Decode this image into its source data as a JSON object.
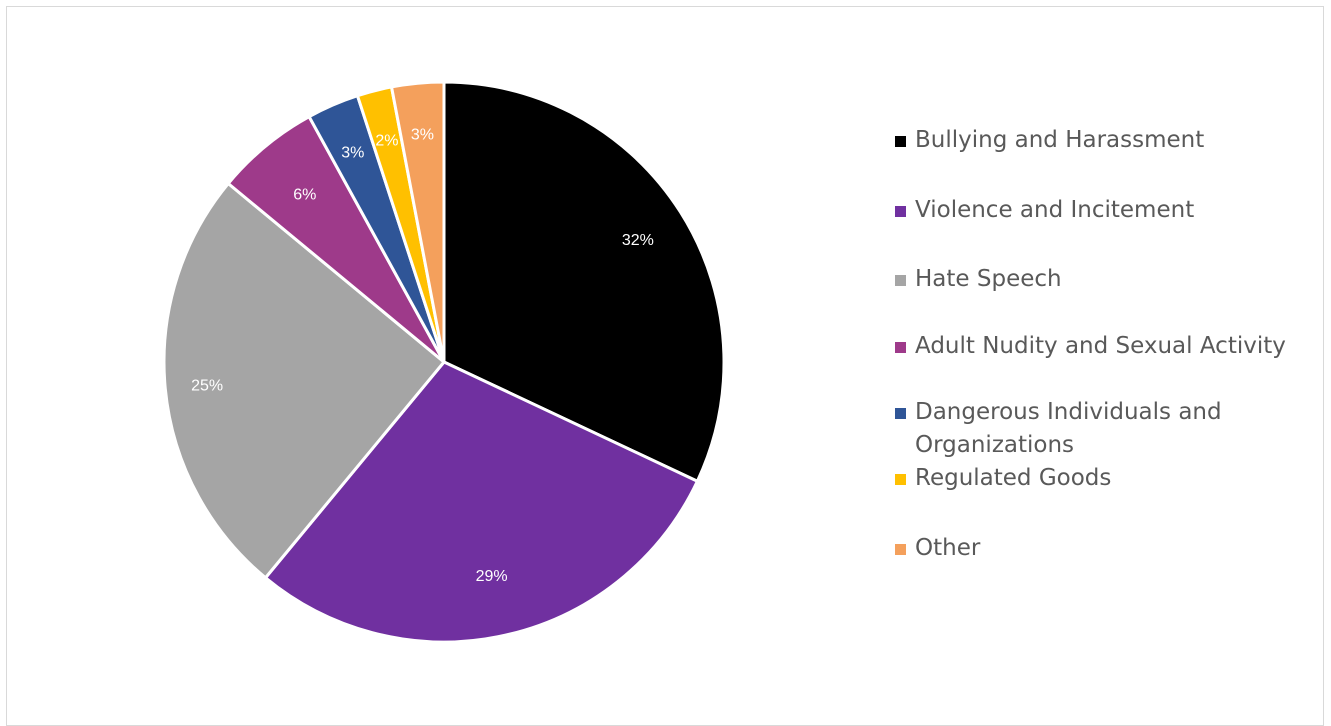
{
  "chart_data": {
    "type": "pie",
    "title": "",
    "start_angle_deg": 0,
    "direction": "clockwise",
    "legend_position": "right",
    "slices": [
      {
        "name": "Bullying and Harassment",
        "value": 32,
        "label": "32%",
        "color": "#000000"
      },
      {
        "name": "Violence and Incitement",
        "value": 29,
        "label": "29%",
        "color": "#7030A0"
      },
      {
        "name": "Hate Speech",
        "value": 25,
        "label": "25%",
        "color": "#A5A5A5"
      },
      {
        "name": "Adult Nudity and Sexual Activity",
        "value": 6,
        "label": "6%",
        "color": "#9E3A8A"
      },
      {
        "name": "Dangerous Individuals and Organizations",
        "value": 3,
        "label": "3%",
        "color": "#2F5597"
      },
      {
        "name": "Regulated Goods",
        "value": 2,
        "label": "2%",
        "color": "#FFC000"
      },
      {
        "name": "Other",
        "value": 3,
        "label": "3%",
        "color": "#F4A05C"
      }
    ]
  }
}
